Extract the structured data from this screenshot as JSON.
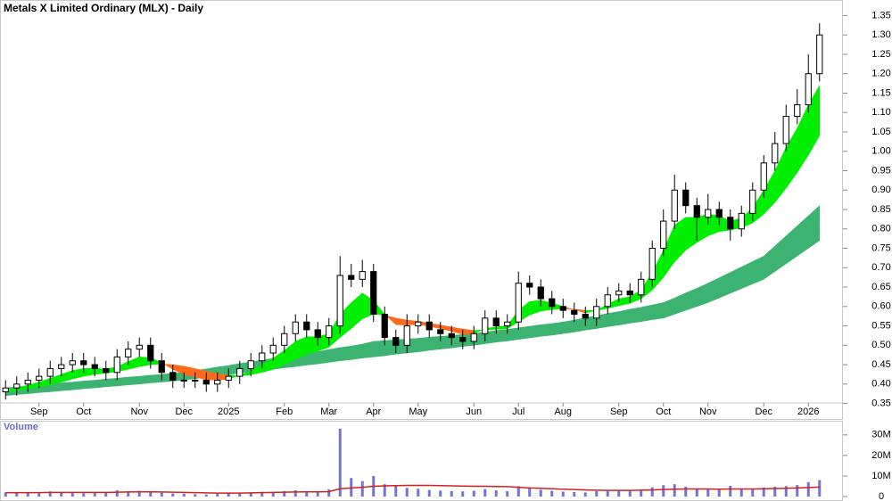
{
  "chart_data": [
    {
      "type": "candlestick",
      "title": "Metals X Limited Ordinary (MLX) - Daily",
      "categories": [
        null,
        null,
        null,
        "Sep",
        null,
        null,
        null,
        "Oct",
        null,
        null,
        null,
        null,
        "Nov",
        null,
        null,
        null,
        "Dec",
        null,
        null,
        null,
        "2025",
        null,
        null,
        null,
        null,
        "Feb",
        null,
        null,
        null,
        "Mar",
        null,
        null,
        null,
        "Apr",
        null,
        null,
        null,
        "May",
        null,
        null,
        null,
        null,
        "Jun",
        null,
        null,
        null,
        "Jul",
        null,
        null,
        null,
        "Aug",
        null,
        null,
        null,
        null,
        "Sep",
        null,
        null,
        null,
        "Oct",
        null,
        null,
        null,
        "Nov",
        null,
        null,
        null,
        null,
        "Dec",
        null,
        null,
        null,
        "2026",
        null
      ],
      "open": [
        0.38,
        0.39,
        0.4,
        0.41,
        0.42,
        0.44,
        0.45,
        0.46,
        0.45,
        0.44,
        0.43,
        0.47,
        0.49,
        0.5,
        0.46,
        0.43,
        0.41,
        0.41,
        0.41,
        0.4,
        0.41,
        0.42,
        0.44,
        0.46,
        0.48,
        0.5,
        0.53,
        0.56,
        0.54,
        0.52,
        0.55,
        0.68,
        0.67,
        0.69,
        0.58,
        0.52,
        0.5,
        0.55,
        0.56,
        0.54,
        0.53,
        0.52,
        0.51,
        0.53,
        0.57,
        0.55,
        0.56,
        0.66,
        0.65,
        0.62,
        0.6,
        0.59,
        0.58,
        0.57,
        0.6,
        0.63,
        0.64,
        0.63,
        0.67,
        0.75,
        0.82,
        0.9,
        0.86,
        0.83,
        0.85,
        0.83,
        0.8,
        0.84,
        0.9,
        0.97,
        1.02,
        1.09,
        1.12,
        1.2
      ],
      "high": [
        0.41,
        0.42,
        0.43,
        0.44,
        0.46,
        0.47,
        0.48,
        0.48,
        0.47,
        0.46,
        0.49,
        0.51,
        0.52,
        0.52,
        0.48,
        0.45,
        0.43,
        0.43,
        0.43,
        0.43,
        0.44,
        0.46,
        0.48,
        0.5,
        0.52,
        0.55,
        0.58,
        0.58,
        0.56,
        0.57,
        0.73,
        0.71,
        0.72,
        0.71,
        0.6,
        0.54,
        0.58,
        0.58,
        0.58,
        0.56,
        0.55,
        0.54,
        0.55,
        0.59,
        0.59,
        0.58,
        0.69,
        0.68,
        0.67,
        0.64,
        0.62,
        0.61,
        0.6,
        0.62,
        0.65,
        0.66,
        0.66,
        0.69,
        0.77,
        0.85,
        0.94,
        0.92,
        0.88,
        0.89,
        0.87,
        0.85,
        0.86,
        0.92,
        0.99,
        1.05,
        1.12,
        1.16,
        1.25,
        1.33
      ],
      "low": [
        0.36,
        0.37,
        0.38,
        0.39,
        0.4,
        0.42,
        0.43,
        0.43,
        0.42,
        0.41,
        0.41,
        0.45,
        0.47,
        0.44,
        0.41,
        0.39,
        0.39,
        0.39,
        0.38,
        0.38,
        0.39,
        0.4,
        0.42,
        0.44,
        0.46,
        0.48,
        0.51,
        0.52,
        0.5,
        0.5,
        0.53,
        0.65,
        0.65,
        0.56,
        0.5,
        0.48,
        0.48,
        0.53,
        0.52,
        0.51,
        0.5,
        0.49,
        0.49,
        0.51,
        0.53,
        0.53,
        0.54,
        0.63,
        0.6,
        0.58,
        0.57,
        0.56,
        0.55,
        0.55,
        0.58,
        0.61,
        0.61,
        0.61,
        0.65,
        0.73,
        0.8,
        0.84,
        0.77,
        0.81,
        0.81,
        0.77,
        0.78,
        0.82,
        0.88,
        0.95,
        1.0,
        1.07,
        1.1,
        1.18
      ],
      "close": [
        0.39,
        0.4,
        0.41,
        0.42,
        0.44,
        0.45,
        0.46,
        0.45,
        0.44,
        0.43,
        0.47,
        0.49,
        0.5,
        0.46,
        0.43,
        0.41,
        0.41,
        0.41,
        0.4,
        0.41,
        0.42,
        0.44,
        0.46,
        0.48,
        0.5,
        0.53,
        0.56,
        0.54,
        0.52,
        0.55,
        0.68,
        0.67,
        0.69,
        0.58,
        0.52,
        0.5,
        0.55,
        0.56,
        0.54,
        0.53,
        0.52,
        0.51,
        0.53,
        0.57,
        0.55,
        0.56,
        0.66,
        0.65,
        0.62,
        0.6,
        0.59,
        0.58,
        0.57,
        0.6,
        0.63,
        0.64,
        0.63,
        0.67,
        0.75,
        0.82,
        0.9,
        0.86,
        0.83,
        0.85,
        0.83,
        0.8,
        0.84,
        0.9,
        0.97,
        1.02,
        1.09,
        1.12,
        1.2,
        1.3
      ],
      "short_fast": [
        0.385,
        0.39,
        0.397,
        0.405,
        0.415,
        0.425,
        0.435,
        0.44,
        0.441,
        0.438,
        0.445,
        0.458,
        0.47,
        0.468,
        0.455,
        0.438,
        0.425,
        0.418,
        0.411,
        0.41,
        0.413,
        0.422,
        0.435,
        0.45,
        0.467,
        0.487,
        0.51,
        0.522,
        0.522,
        0.53,
        0.58,
        0.61,
        0.635,
        0.615,
        0.58,
        0.553,
        0.552,
        0.554,
        0.549,
        0.543,
        0.536,
        0.528,
        0.529,
        0.544,
        0.547,
        0.551,
        0.59,
        0.613,
        0.616,
        0.609,
        0.6,
        0.592,
        0.583,
        0.59,
        0.606,
        0.62,
        0.625,
        0.643,
        0.688,
        0.745,
        0.81,
        0.83,
        0.83,
        0.838,
        0.834,
        0.82,
        0.828,
        0.855,
        0.9,
        0.95,
        1.01,
        1.06,
        1.12,
        1.17
      ],
      "short_slow": [
        0.38,
        0.383,
        0.387,
        0.392,
        0.398,
        0.405,
        0.413,
        0.42,
        0.425,
        0.428,
        0.432,
        0.438,
        0.445,
        0.45,
        0.452,
        0.45,
        0.446,
        0.44,
        0.433,
        0.427,
        0.423,
        0.421,
        0.424,
        0.43,
        0.438,
        0.45,
        0.464,
        0.476,
        0.485,
        0.495,
        0.52,
        0.543,
        0.568,
        0.58,
        0.578,
        0.57,
        0.565,
        0.562,
        0.557,
        0.552,
        0.547,
        0.542,
        0.538,
        0.54,
        0.541,
        0.543,
        0.56,
        0.578,
        0.588,
        0.592,
        0.594,
        0.593,
        0.59,
        0.59,
        0.595,
        0.602,
        0.608,
        0.62,
        0.642,
        0.675,
        0.715,
        0.745,
        0.765,
        0.782,
        0.793,
        0.797,
        0.803,
        0.815,
        0.838,
        0.868,
        0.905,
        0.945,
        0.99,
        1.04
      ],
      "long_fast": [
        0.39,
        0.393,
        0.395,
        0.398,
        0.4,
        0.403,
        0.405,
        0.408,
        0.41,
        0.413,
        0.415,
        0.418,
        0.42,
        0.423,
        0.425,
        0.428,
        0.43,
        0.435,
        0.439,
        0.444,
        0.448,
        0.453,
        0.457,
        0.462,
        0.466,
        0.471,
        0.475,
        0.48,
        0.484,
        0.489,
        0.494,
        0.498,
        0.503,
        0.51,
        0.512,
        0.514,
        0.516,
        0.518,
        0.521,
        0.523,
        0.525,
        0.528,
        0.53,
        0.534,
        0.538,
        0.541,
        0.545,
        0.549,
        0.553,
        0.556,
        0.56,
        0.565,
        0.571,
        0.576,
        0.582,
        0.587,
        0.593,
        0.598,
        0.604,
        0.61,
        0.622,
        0.635,
        0.647,
        0.66,
        0.674,
        0.688,
        0.702,
        0.716,
        0.73,
        0.756,
        0.782,
        0.808,
        0.834,
        0.86
      ],
      "long_slow": [
        0.37,
        0.373,
        0.375,
        0.378,
        0.38,
        0.383,
        0.385,
        0.388,
        0.39,
        0.393,
        0.395,
        0.398,
        0.4,
        0.403,
        0.405,
        0.408,
        0.41,
        0.414,
        0.417,
        0.421,
        0.424,
        0.428,
        0.431,
        0.435,
        0.438,
        0.442,
        0.445,
        0.449,
        0.452,
        0.456,
        0.46,
        0.463,
        0.467,
        0.47,
        0.473,
        0.477,
        0.48,
        0.483,
        0.487,
        0.49,
        0.493,
        0.497,
        0.5,
        0.504,
        0.508,
        0.511,
        0.515,
        0.519,
        0.523,
        0.526,
        0.53,
        0.534,
        0.539,
        0.543,
        0.548,
        0.552,
        0.557,
        0.561,
        0.566,
        0.57,
        0.58,
        0.59,
        0.6,
        0.61,
        0.622,
        0.634,
        0.646,
        0.658,
        0.67,
        0.69,
        0.71,
        0.73,
        0.75,
        0.77
      ],
      "up_color": "#ffffff",
      "down_color": "#000000",
      "short_up_color": "#00ee00",
      "short_down_color": "#ff6a1a",
      "long_color": "#3cb371",
      "ylim": [
        0.31,
        1.39
      ],
      "yticks": [
        0.35,
        {
          "value": 0.4,
          "label": "0.40"
        },
        0.45,
        {
          "value": 0.5,
          "label": "0.50"
        },
        0.55,
        {
          "value": 0.6,
          "label": "0.60"
        },
        0.65,
        {
          "value": 0.7,
          "label": "0.70"
        },
        0.75,
        {
          "value": 0.8,
          "label": "0.80"
        },
        0.85,
        {
          "value": 0.9,
          "label": "0.90"
        },
        0.95,
        {
          "value": 1,
          "label": "1.00"
        },
        1.05,
        {
          "value": 1.1,
          "label": "1.10"
        },
        1.15,
        {
          "value": 1.2,
          "label": "1.20"
        },
        1.25,
        {
          "value": 1.3,
          "label": "1.30"
        },
        1.35
      ]
    },
    {
      "type": "volume",
      "title": "Volume",
      "color": "#7373d2",
      "avg_color": "#d42020",
      "values": [
        2000000,
        1800000,
        2200000,
        1500000,
        2500000,
        1800000,
        2000000,
        1600000,
        1900000,
        2100000,
        3000000,
        2600000,
        2800000,
        2200000,
        1900000,
        1500000,
        1400000,
        1200000,
        1000000,
        1300000,
        1600000,
        1800000,
        2000000,
        2300000,
        2100000,
        2700000,
        3100000,
        2400000,
        2200000,
        3500000,
        33000000,
        9000000,
        7500000,
        10000000,
        6000000,
        5000000,
        4200000,
        3800000,
        3200000,
        2900000,
        2700000,
        2500000,
        2800000,
        3600000,
        3000000,
        2600000,
        5000000,
        4200000,
        3300000,
        2800000,
        2400000,
        2200000,
        2000000,
        2600000,
        3200000,
        2900000,
        2700000,
        3400000,
        4500000,
        5500000,
        6000000,
        4800000,
        4000000,
        3600000,
        3300000,
        5200000,
        4000000,
        3800000,
        4400000,
        4800000,
        5100000,
        5600000,
        7000000,
        8000000
      ],
      "avg": [
        1900000,
        1900000,
        1900000,
        1900000,
        2000000,
        2000000,
        2000000,
        2000000,
        2000000,
        2000000,
        2100000,
        2200000,
        2300000,
        2300000,
        2200000,
        2100000,
        2000000,
        1900000,
        1800000,
        1700000,
        1700000,
        1700000,
        1800000,
        1900000,
        2000000,
        2100000,
        2200000,
        2300000,
        2300000,
        2400000,
        3800000,
        4200000,
        4500000,
        5000000,
        5200000,
        5300000,
        5400000,
        5400000,
        5400000,
        5300000,
        5200000,
        5100000,
        5000000,
        5000000,
        4900000,
        4800000,
        4500000,
        4200000,
        4000000,
        3800000,
        3600000,
        3400000,
        3200000,
        3100000,
        3000000,
        3000000,
        3000000,
        3100000,
        3200000,
        3400000,
        3600000,
        3700000,
        3700000,
        3700000,
        3600000,
        3700000,
        3700000,
        3700000,
        3800000,
        3900000,
        4000000,
        4200000,
        4400000,
        4600000
      ],
      "ylim": [
        0,
        36000000
      ],
      "yticks": [
        0,
        {
          "value": 10000000,
          "label": "10M"
        },
        {
          "value": 20000000,
          "label": "20M"
        },
        {
          "value": 30000000,
          "label": "30M"
        }
      ]
    }
  ]
}
